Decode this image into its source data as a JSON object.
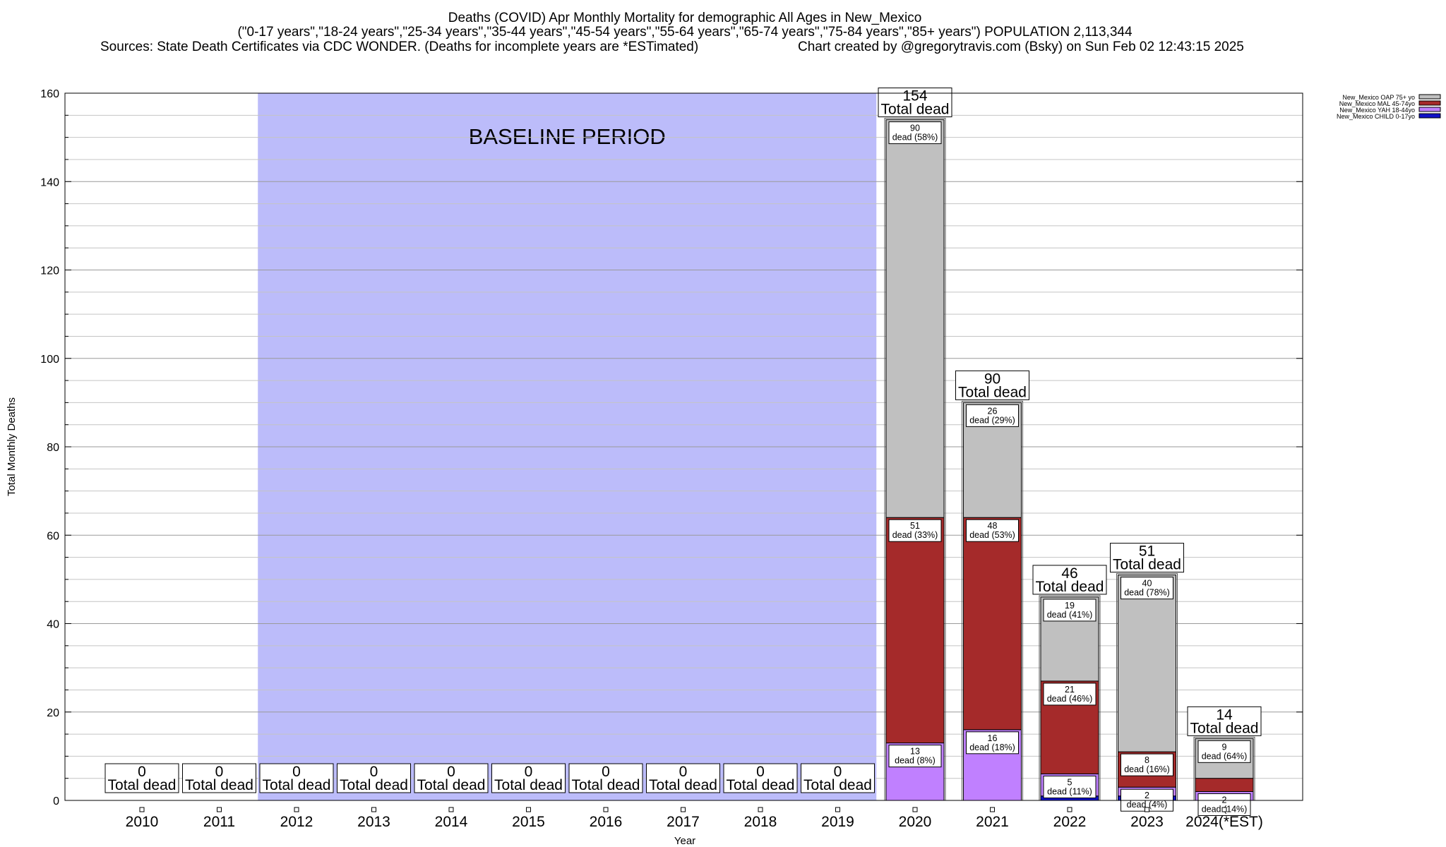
{
  "chart_data": {
    "type": "bar",
    "stacked": true,
    "title_lines": [
      "Deaths (COVID) Apr Monthly Mortality for demographic All Ages in New_Mexico",
      "(\"0-17 years\",\"18-24 years\",\"25-34 years\",\"35-44 years\",\"45-54 years\",\"55-64 years\",\"65-74 years\",\"75-84 years\",\"85+ years\") POPULATION 2,113,344",
      "Sources: State Death Certificates via CDC WONDER. (Deaths for incomplete years are *ESTimated)",
      "Chart created by @gregorytravis.com (Bsky) on Sun Feb 02 12:43:15 2025"
    ],
    "xlabel": "Year",
    "ylabel": "Total Monthly Deaths",
    "ylim": [
      0,
      160
    ],
    "yticks": [
      "0",
      "20",
      "40",
      "60",
      "80",
      "100",
      "120",
      "140",
      "160"
    ],
    "grid": true,
    "legend_position": "top-right",
    "baseline_label": "BASELINE PERIOD",
    "baseline_range": [
      "2012",
      "2019"
    ],
    "total_suffix": "Total dead",
    "categories": [
      "2010",
      "2011",
      "2012",
      "2013",
      "2014",
      "2015",
      "2016",
      "2017",
      "2018",
      "2019",
      "2020",
      "2021",
      "2022",
      "2023",
      "2024(*EST)"
    ],
    "totals": [
      0,
      0,
      0,
      0,
      0,
      0,
      0,
      0,
      0,
      0,
      154,
      90,
      46,
      51,
      14
    ],
    "series": [
      {
        "name": "New_Mexico CHILD 0-17yo",
        "color": "#1010c8",
        "values": [
          0,
          0,
          0,
          0,
          0,
          0,
          0,
          0,
          0,
          0,
          0,
          0,
          1,
          1,
          0
        ],
        "labels": []
      },
      {
        "name": "New_Mexico YAH 18-44yo",
        "color": "#c080ff",
        "values": [
          0,
          0,
          0,
          0,
          0,
          0,
          0,
          0,
          0,
          0,
          13,
          16,
          5,
          2,
          2
        ],
        "labels": [
          "",
          "",
          "",
          "",
          "",
          "",
          "",
          "",
          "",
          "",
          "dead (8%)",
          "dead (18%)",
          "dead (11%)",
          "dead (4%)",
          "dead (14%)"
        ]
      },
      {
        "name": "New_Mexico MAL 45-74yo",
        "color": "#a52a2a",
        "values": [
          0,
          0,
          0,
          0,
          0,
          0,
          0,
          0,
          0,
          0,
          51,
          48,
          21,
          8,
          3
        ],
        "labels": [
          "",
          "",
          "",
          "",
          "",
          "",
          "",
          "",
          "",
          "",
          "dead (33%)",
          "dead (53%)",
          "dead (46%)",
          "dead (16%)",
          ""
        ]
      },
      {
        "name": "New_Mexico OAP 75+ yo",
        "color": "#c0c0c0",
        "values": [
          0,
          0,
          0,
          0,
          0,
          0,
          0,
          0,
          0,
          0,
          90,
          26,
          19,
          40,
          9
        ],
        "labels": [
          "",
          "",
          "",
          "",
          "",
          "",
          "",
          "",
          "",
          "",
          "dead (58%)",
          "dead (29%)",
          "dead (41%)",
          "dead (78%)",
          "dead (64%)"
        ]
      }
    ]
  }
}
